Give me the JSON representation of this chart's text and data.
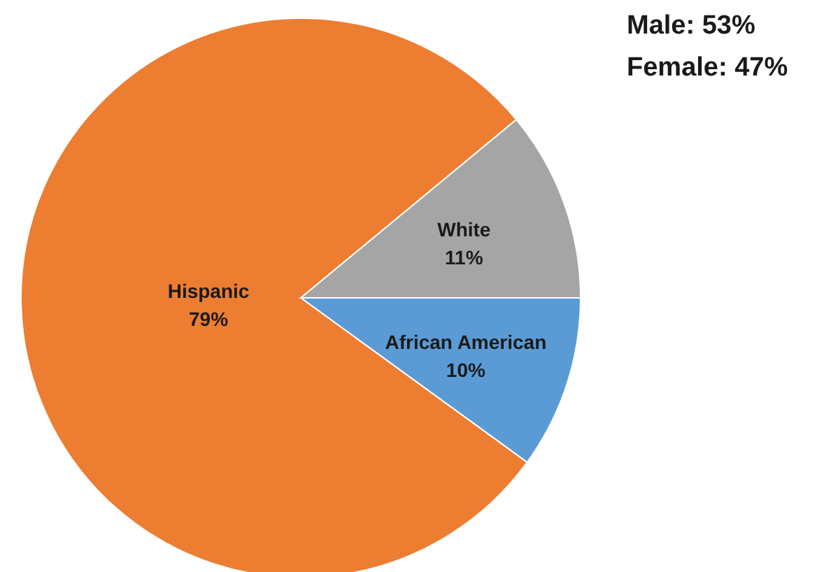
{
  "chart_data": {
    "type": "pie",
    "categories": [
      "African American",
      "Hispanic",
      "White"
    ],
    "values": [
      10,
      79,
      11
    ],
    "colors": [
      "#5b9bd5",
      "#ed7d31",
      "#a5a5a5"
    ],
    "value_labels": [
      "10%",
      "79%",
      "11%"
    ],
    "legend": false,
    "annotations": [
      "Male: 53%",
      "Female: 47%"
    ]
  }
}
